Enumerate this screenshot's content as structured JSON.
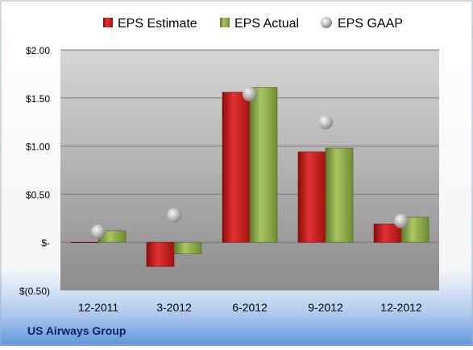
{
  "chart_data": {
    "type": "bar",
    "categories": [
      "12-2011",
      "3-2012",
      "6-2012",
      "9-2012",
      "12-2012"
    ],
    "series": [
      {
        "name": "EPS Estimate",
        "kind": "bar",
        "color": "#cc1a1a",
        "values": [
          0.0,
          -0.25,
          1.56,
          0.94,
          0.19
        ]
      },
      {
        "name": "EPS Actual",
        "kind": "bar",
        "color": "#8fae4a",
        "values": [
          0.12,
          -0.12,
          1.61,
          0.98,
          0.26
        ]
      },
      {
        "name": "EPS GAAP",
        "kind": "marker",
        "color": "#9a9a9a",
        "values": [
          0.11,
          0.28,
          1.54,
          1.25,
          0.22
        ]
      }
    ],
    "yticks": [
      {
        "value": 2.0,
        "label": "$2.00"
      },
      {
        "value": 1.5,
        "label": "$1.50"
      },
      {
        "value": 1.0,
        "label": "$1.00"
      },
      {
        "value": 0.5,
        "label": "$0.50"
      },
      {
        "value": 0.0,
        "label": "$-"
      },
      {
        "value": -0.5,
        "label": "$(0.50)"
      }
    ],
    "ylim": [
      -0.5,
      2.0
    ],
    "grid": true,
    "legend_position": "top"
  },
  "company_label": "US Airways Group"
}
